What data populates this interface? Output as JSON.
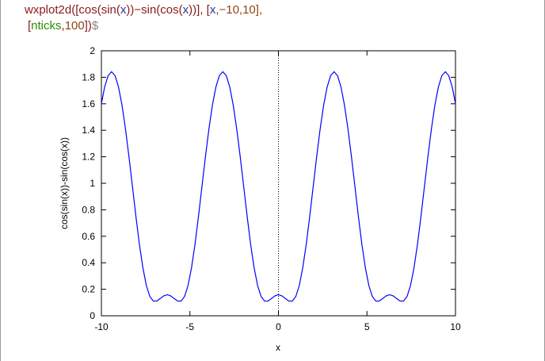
{
  "input": {
    "line1": [
      "wxplot2d([cos(sin(",
      "x",
      "))−sin(cos(",
      "x",
      "))], [",
      "x",
      ",−10,10],"
    ],
    "line2": [
      "[",
      "nticks",
      ",",
      "100",
      "])",
      "$"
    ]
  },
  "chart_data": {
    "type": "line",
    "xlabel": "x",
    "ylabel": "cos(sin(x))-sin(cos(x))",
    "x": [
      -10,
      -9.8175,
      -9.6211,
      -9.4248,
      -9.2284,
      -9.0321,
      -8.8357,
      -8.6394,
      -8.443,
      -8.2467,
      -8.0503,
      -7.854,
      -7.6576,
      -7.4613,
      -7.2649,
      -7.0686,
      -6.8722,
      -6.6759,
      -6.4795,
      -6.2832,
      -6.0868,
      -5.8905,
      -5.6941,
      -5.4978,
      -5.3014,
      -5.1051,
      -4.9087,
      -4.7124,
      -4.516,
      -4.3197,
      -4.1233,
      -3.927,
      -3.7306,
      -3.5343,
      -3.3379,
      -3.1416,
      -2.9452,
      -2.7489,
      -2.5525,
      -2.3562,
      -2.1598,
      -1.9635,
      -1.7671,
      -1.5708,
      -1.3744,
      -1.1781,
      -0.9817,
      -0.7854,
      -0.589,
      -0.3927,
      -0.1963,
      0,
      0.1963,
      0.3927,
      0.589,
      0.7854,
      0.9817,
      1.1781,
      1.3744,
      1.5708,
      1.7671,
      1.9635,
      2.1598,
      2.3562,
      2.5525,
      2.7489,
      2.9452,
      3.1416,
      3.3379,
      3.5343,
      3.7306,
      3.927,
      4.1233,
      4.3197,
      4.516,
      4.7124,
      4.9087,
      5.1051,
      5.3014,
      5.4978,
      5.6941,
      5.8905,
      6.0868,
      6.2832,
      6.4795,
      6.6759,
      6.8722,
      7.0686,
      7.2649,
      7.4613,
      7.6576,
      7.854,
      8.0503,
      8.2467,
      8.443,
      8.6394,
      8.8357,
      9.0321,
      9.2284,
      9.4248,
      9.6211,
      9.8175,
      10
    ],
    "series": [
      {
        "color": "#0000ff",
        "values": [
          1.6,
          1.726,
          1.812,
          1.842,
          1.812,
          1.726,
          1.589,
          1.41,
          1.201,
          0.976,
          0.75,
          0.54,
          0.363,
          0.229,
          0.146,
          0.111,
          0.111,
          0.13,
          0.15,
          0.159,
          0.15,
          0.13,
          0.111,
          0.111,
          0.146,
          0.229,
          0.363,
          0.54,
          0.75,
          0.976,
          1.201,
          1.41,
          1.589,
          1.726,
          1.812,
          1.842,
          1.812,
          1.726,
          1.589,
          1.41,
          1.201,
          0.976,
          0.75,
          0.54,
          0.363,
          0.229,
          0.146,
          0.111,
          0.111,
          0.13,
          0.15,
          0.159,
          0.15,
          0.13,
          0.111,
          0.111,
          0.146,
          0.229,
          0.363,
          0.54,
          0.75,
          0.976,
          1.201,
          1.41,
          1.589,
          1.726,
          1.812,
          1.842,
          1.812,
          1.726,
          1.589,
          1.41,
          1.201,
          0.976,
          0.75,
          0.54,
          0.363,
          0.229,
          0.146,
          0.111,
          0.111,
          0.13,
          0.15,
          0.159,
          0.15,
          0.13,
          0.111,
          0.111,
          0.146,
          0.229,
          0.363,
          0.54,
          0.75,
          0.976,
          1.201,
          1.41,
          1.589,
          1.726,
          1.812,
          1.842,
          1.812,
          1.726,
          1.6
        ]
      }
    ],
    "xlim": [
      -10,
      10
    ],
    "ylim": [
      0,
      2
    ],
    "xticks": [
      -10,
      -5,
      0,
      5,
      10
    ],
    "yticks": [
      0,
      0.2,
      0.4,
      0.6,
      0.8,
      1,
      1.2,
      1.4,
      1.6,
      1.8,
      2
    ],
    "zero_axis": true
  }
}
